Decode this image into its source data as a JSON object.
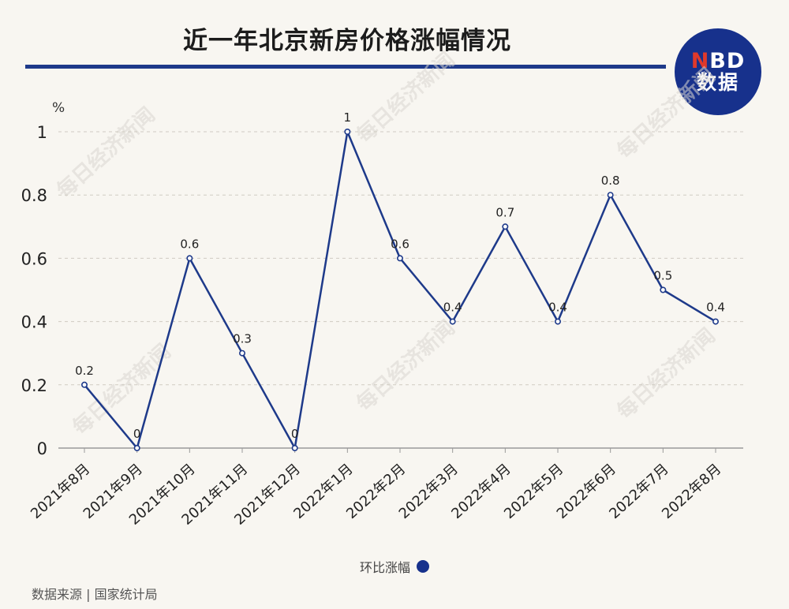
{
  "title": "近一年北京新房价格涨幅情况",
  "logo": {
    "line1_n": "N",
    "line1_rest": "BD",
    "line2": "数据"
  },
  "watermark": "每日经济新闻",
  "source": "数据来源 | 国家统计局",
  "chart_data": {
    "type": "line",
    "title": "近一年北京新房价格涨幅情况",
    "ylabel": "%",
    "xlabel": "",
    "categories": [
      "2021年8月",
      "2021年9月",
      "2021年10月",
      "2021年11月",
      "2021年12月",
      "2022年1月",
      "2022年2月",
      "2022年3月",
      "2022年4月",
      "2022年5月",
      "2022年6月",
      "2022年7月",
      "2022年8月"
    ],
    "series": [
      {
        "name": "环比涨幅",
        "values": [
          0.2,
          0,
          0.6,
          0.3,
          0,
          1,
          0.6,
          0.4,
          0.7,
          0.4,
          0.8,
          0.5,
          0.4
        ],
        "color": "#1e3a8a"
      }
    ],
    "ylim": [
      0,
      1
    ],
    "yticks": [
      "0",
      "0.2",
      "0.4",
      "0.6",
      "0.8",
      "1"
    ],
    "grid": true,
    "legend_position": "bottom"
  }
}
